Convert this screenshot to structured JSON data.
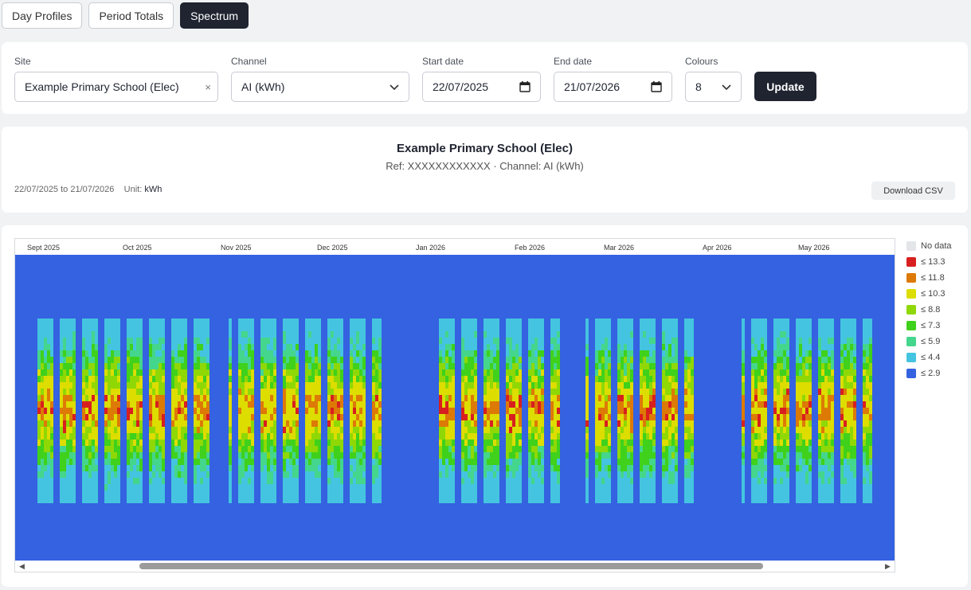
{
  "tabs": [
    {
      "label": "Day Profiles",
      "active": false
    },
    {
      "label": "Period Totals",
      "active": false
    },
    {
      "label": "Spectrum",
      "active": true
    }
  ],
  "controls": {
    "site": {
      "label": "Site",
      "value": "Example Primary School (Elec)"
    },
    "channel": {
      "label": "Channel",
      "value": "AI (kWh)"
    },
    "start_date": {
      "label": "Start date",
      "value": "22/07/2025"
    },
    "end_date": {
      "label": "End date",
      "value": "21/07/2026"
    },
    "colours": {
      "label": "Colours",
      "value": "8"
    },
    "update_label": "Update"
  },
  "summary": {
    "title": "Example Primary School (Elec)",
    "ref_line": "Ref: XXXXXXXXXXXX · Channel: AI (kWh)",
    "date_range": "22/07/2025 to 21/07/2026",
    "unit_label": "Unit:",
    "unit": "kWh",
    "download_label": "Download CSV"
  },
  "chart_data": {
    "type": "heatmap",
    "x_axis_labels": [
      "Sept 2025",
      "Oct 2025",
      "Nov 2025",
      "Dec 2025",
      "Jan 2026",
      "Feb 2026",
      "Mar 2026",
      "Apr 2026",
      "May 2026"
    ],
    "legend": [
      {
        "label": "No data",
        "color": "#e4e5e8"
      },
      {
        "label": "≤ 13.3",
        "color": "#d81f1f"
      },
      {
        "label": "≤ 11.8",
        "color": "#dd7a06"
      },
      {
        "label": "≤ 10.3",
        "color": "#dddd00"
      },
      {
        "label": "≤ 8.8",
        "color": "#8fd806"
      },
      {
        "label": "≤ 7.3",
        "color": "#3fd11b"
      },
      {
        "label": "≤ 5.9",
        "color": "#44d68c"
      },
      {
        "label": "≤ 4.4",
        "color": "#44c4e0"
      },
      {
        "label": "≤ 2.9",
        "color": "#3462e0"
      }
    ],
    "thresholds": [
      2.9,
      4.4,
      5.9,
      7.3,
      8.8,
      10.3,
      11.8,
      13.3
    ]
  }
}
